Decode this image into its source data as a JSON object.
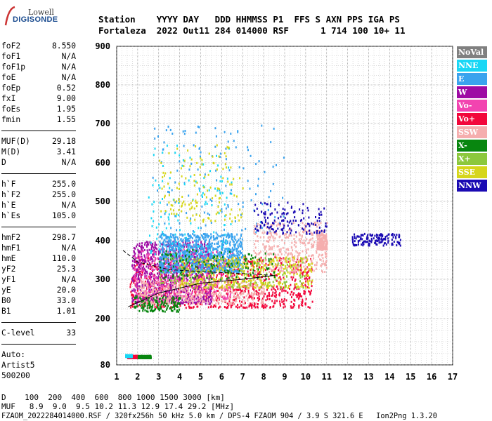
{
  "logo": {
    "line1": "Lowell",
    "line2": "DIGISONDE"
  },
  "header": {
    "line1": "Station    YYYY DAY   DDD HHMMSS P1  FFS S AXN PPS IGA PS",
    "line2": "Fortaleza  2022 Out11 284 014000 RSF      1 714 100 10+ 11"
  },
  "params": [
    {
      "label": "foF2",
      "value": "8.550"
    },
    {
      "label": "foF1",
      "value": "N/A"
    },
    {
      "label": "foF1p",
      "value": "N/A"
    },
    {
      "label": "foE",
      "value": "N/A"
    },
    {
      "label": "foEp",
      "value": "0.52"
    },
    {
      "label": "fxI",
      "value": "9.00"
    },
    {
      "label": "foEs",
      "value": "1.95"
    },
    {
      "label": "fmin",
      "value": "1.55"
    },
    {
      "sep": true
    },
    {
      "label": "MUF(D)",
      "value": "29.18"
    },
    {
      "label": "M(D)",
      "value": "3.41"
    },
    {
      "label": "D",
      "value": "N/A"
    },
    {
      "sep": true
    },
    {
      "label": "h`F",
      "value": "255.0"
    },
    {
      "label": "h`F2",
      "value": "255.0"
    },
    {
      "label": "h`E",
      "value": "N/A"
    },
    {
      "label": "h`Es",
      "value": "105.0"
    },
    {
      "sep": true
    },
    {
      "label": "hmF2",
      "value": "298.7"
    },
    {
      "label": "hmF1",
      "value": "N/A"
    },
    {
      "label": "hmE",
      "value": "110.0"
    },
    {
      "label": "yF2",
      "value": "25.3"
    },
    {
      "label": "yF1",
      "value": "N/A"
    },
    {
      "label": "yE",
      "value": "20.0"
    },
    {
      "label": "B0",
      "value": "33.0"
    },
    {
      "label": "B1",
      "value": "1.01"
    },
    {
      "sep": true
    },
    {
      "label": "C-level",
      "value": "33"
    },
    {
      "sep": true
    }
  ],
  "auto": {
    "line1": "Auto:",
    "line2": "Artist5",
    "line3": "500200"
  },
  "legend": [
    {
      "label": "NoVal",
      "color": "#808080"
    },
    {
      "label": "NNE",
      "color": "#19d7f5"
    },
    {
      "label": "E",
      "color": "#3aa3ee"
    },
    {
      "label": "W",
      "color": "#9e0aa4"
    },
    {
      "label": "Vo-",
      "color": "#f244b0"
    },
    {
      "label": "Vo+",
      "color": "#f2073b"
    },
    {
      "label": "SSW",
      "color": "#f5aeae"
    },
    {
      "label": "X-",
      "color": "#08860f"
    },
    {
      "label": "X+",
      "color": "#8cc83c"
    },
    {
      "label": "SSE",
      "color": "#d6d61b"
    },
    {
      "label": "NNW",
      "color": "#1a0ab3"
    }
  ],
  "footer": {
    "line1": "D    100  200  400  600  800 1000 1500 3000 [km]",
    "line2": "MUF   8.9  9.0  9.5 10.2 11.3 12.9 17.4 29.2 [MHz]",
    "line3": "FZAOM_2022284014000.RSF / 320fx256h 50 kHz 5.0 km / DPS-4 FZAOM 904 / 3.9 S 321.6 E   Ion2Png 1.3.20"
  },
  "chart_data": {
    "type": "scatter",
    "x_ticks": [
      1,
      2,
      3,
      4,
      5,
      6,
      7,
      8,
      9,
      10,
      11,
      12,
      13,
      14,
      15,
      16,
      17
    ],
    "y_ticks": [
      80,
      200,
      300,
      400,
      500,
      600,
      700,
      800,
      900
    ],
    "xlim": [
      1,
      17
    ],
    "y_axis_note": "non-linear virtual height axis, tick values as printed",
    "grid": true,
    "trace_clusters": [
      {
        "series": "Vo+",
        "x_range": [
          1.6,
          10.3
        ],
        "y_range": [
          230,
          360
        ],
        "density": "high"
      },
      {
        "series": "W",
        "x_range": [
          1.7,
          5.5
        ],
        "y_range": [
          240,
          400
        ],
        "density": "high"
      },
      {
        "series": "Vo-",
        "x_range": [
          1.8,
          6.5
        ],
        "y_range": [
          250,
          380
        ],
        "density": "medium"
      },
      {
        "series": "E",
        "x_range": [
          3.0,
          7.0
        ],
        "y_range": [
          320,
          420
        ],
        "density": "high"
      },
      {
        "series": "E",
        "x_range": [
          2.6,
          9.0
        ],
        "y_range": [
          420,
          700
        ],
        "density": "low"
      },
      {
        "series": "NNE",
        "x_range": [
          2.5,
          6.5
        ],
        "y_range": [
          350,
          650
        ],
        "density": "low"
      },
      {
        "series": "SSE",
        "x_range": [
          3.0,
          7.0
        ],
        "y_range": [
          450,
          650
        ],
        "density": "low"
      },
      {
        "series": "SSW",
        "x_range": [
          7.5,
          11.0
        ],
        "y_range": [
          320,
          450
        ],
        "density": "medium"
      },
      {
        "series": "SSW",
        "x_range": [
          2.0,
          8.0
        ],
        "y_range": [
          240,
          300
        ],
        "density": "medium"
      },
      {
        "series": "SSE",
        "x_range": [
          4.0,
          10.3
        ],
        "y_range": [
          280,
          360
        ],
        "density": "medium"
      },
      {
        "series": "X-",
        "x_range": [
          1.8,
          4.0
        ],
        "y_range": [
          220,
          260
        ],
        "density": "low"
      },
      {
        "series": "X-",
        "x_range": [
          3.0,
          8.5
        ],
        "y_range": [
          300,
          380
        ],
        "density": "low"
      },
      {
        "series": "NNW",
        "x_range": [
          7.5,
          11.0
        ],
        "y_range": [
          420,
          500
        ],
        "density": "low"
      },
      {
        "series": "NNW",
        "x_range": [
          12.2,
          14.5
        ],
        "y_range": [
          390,
          420
        ],
        "density": "low"
      },
      {
        "series": "SSW",
        "x_range": [
          10.5,
          11.0
        ],
        "y_range": [
          380,
          420
        ],
        "density": "low"
      },
      {
        "series": "X+",
        "x_range": [
          3.0,
          10.0
        ],
        "y_range": [
          280,
          360
        ],
        "density": "low"
      },
      {
        "series": "Vo+",
        "x_range": [
          1.5,
          2.0
        ],
        "y_range": [
          100,
          106
        ],
        "density": "high"
      },
      {
        "series": "X-",
        "x_range": [
          2.0,
          2.6
        ],
        "y_range": [
          100,
          106
        ],
        "density": "medium"
      },
      {
        "series": "NNE",
        "x_range": [
          1.4,
          1.7
        ],
        "y_range": [
          103,
          108
        ],
        "density": "low"
      }
    ],
    "profile_curve": {
      "x": [
        1.55,
        3.0,
        5.0,
        7.0,
        8.55
      ],
      "y": [
        230,
        265,
        290,
        300,
        310
      ]
    },
    "profile_curve_dashed": {
      "x": [
        1.3,
        2.0,
        3.5,
        5.0,
        7.0,
        8.5
      ],
      "y": [
        375,
        345,
        325,
        320,
        315,
        310
      ]
    }
  }
}
